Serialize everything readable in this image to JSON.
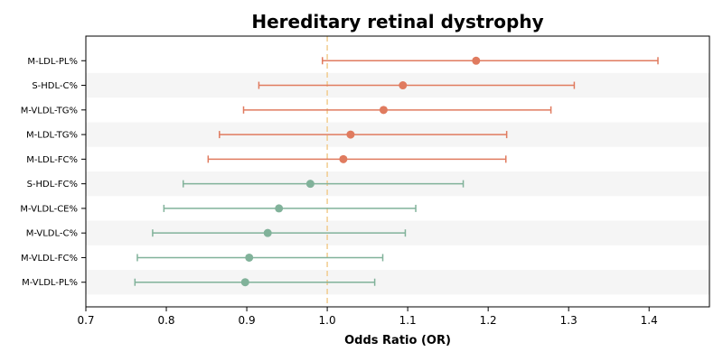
{
  "chart_data": {
    "type": "forest",
    "title": "Hereditary retinal dystrophy",
    "xlabel": "Odds Ratio (OR)",
    "ylabel": "",
    "xlim": [
      0.7,
      1.475
    ],
    "x_ticks": [
      0.7,
      0.8,
      0.9,
      1.0,
      1.1,
      1.2,
      1.3,
      1.4
    ],
    "x_tick_labels": [
      "0.7",
      "0.8",
      "0.9",
      "1.0",
      "1.1",
      "1.2",
      "1.3",
      "1.4"
    ],
    "reference_line": 1.0,
    "grid": false,
    "colors": {
      "risk": "#e07b5f",
      "protective": "#81b29a",
      "reference": "#f2cc8f",
      "band": "#f5f5f5"
    },
    "rows": [
      {
        "label": "M-LDL-PL%",
        "or": 1.185,
        "lower": 0.994,
        "upper": 1.411,
        "group": "risk"
      },
      {
        "label": "S-HDL-C%",
        "or": 1.094,
        "lower": 0.915,
        "upper": 1.307,
        "group": "risk"
      },
      {
        "label": "M-VLDL-TG%",
        "or": 1.07,
        "lower": 0.896,
        "upper": 1.278,
        "group": "risk"
      },
      {
        "label": "M-LDL-TG%",
        "or": 1.029,
        "lower": 0.866,
        "upper": 1.223,
        "group": "risk"
      },
      {
        "label": "M-LDL-FC%",
        "or": 1.02,
        "lower": 0.852,
        "upper": 1.222,
        "group": "risk"
      },
      {
        "label": "S-HDL-FC%",
        "or": 0.979,
        "lower": 0.821,
        "upper": 1.169,
        "group": "protective"
      },
      {
        "label": "M-VLDL-CE%",
        "or": 0.94,
        "lower": 0.797,
        "upper": 1.11,
        "group": "protective"
      },
      {
        "label": "M-VLDL-C%",
        "or": 0.926,
        "lower": 0.783,
        "upper": 1.097,
        "group": "protective"
      },
      {
        "label": "M-VLDL-FC%",
        "or": 0.903,
        "lower": 0.764,
        "upper": 1.069,
        "group": "protective"
      },
      {
        "label": "M-VLDL-PL%",
        "or": 0.898,
        "lower": 0.761,
        "upper": 1.059,
        "group": "protective"
      }
    ]
  }
}
